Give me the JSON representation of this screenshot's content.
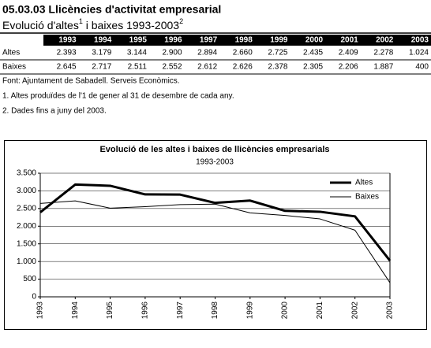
{
  "header": {
    "title": "05.03.03 Llicències d'activitat empresarial",
    "subtitle": [
      "Evolució d'altes",
      "1",
      " i baixes 1993-2003",
      "2"
    ]
  },
  "table": {
    "columns": [
      "1993",
      "1994",
      "1995",
      "1996",
      "1997",
      "1998",
      "1999",
      "2000",
      "2001",
      "2002",
      "2003"
    ],
    "rows": [
      {
        "label": "Altes",
        "values": [
          "2.393",
          "3.179",
          "3.144",
          "2.900",
          "2.894",
          "2.660",
          "2.725",
          "2.435",
          "2.409",
          "2.278",
          "1.024"
        ]
      },
      {
        "label": "Baixes",
        "values": [
          "2.645",
          "2.717",
          "2.511",
          "2.552",
          "2.612",
          "2.626",
          "2.378",
          "2.305",
          "2.206",
          "1.887",
          "400"
        ]
      }
    ]
  },
  "notes": [
    "Font: Ajuntament de Sabadell. Serveis Econòmics.",
    "1. Altes produïdes de l'1 de gener al 31 de desembre de cada any.",
    "2. Dades fins a juny del 2003."
  ],
  "chart_data": {
    "type": "line",
    "title": "Evolució de les altes i baixes de llicències empresarials",
    "subtitle": "1993-2003",
    "categories": [
      "1993",
      "1994",
      "1995",
      "1996",
      "1997",
      "1998",
      "1999",
      "2000",
      "2001",
      "2002",
      "2003"
    ],
    "series": [
      {
        "name": "Altes",
        "color": "#000000",
        "values": [
          2393,
          3179,
          3144,
          2900,
          2894,
          2660,
          2725,
          2435,
          2409,
          2278,
          1024
        ]
      },
      {
        "name": "Baixes",
        "color": "#000000",
        "values": [
          2645,
          2717,
          2511,
          2552,
          2612,
          2626,
          2378,
          2305,
          2206,
          1887,
          400
        ]
      }
    ],
    "ylim": [
      0,
      3500
    ],
    "yticks": [
      {
        "value": 0,
        "label": "0"
      },
      {
        "value": 500,
        "label": "500"
      },
      {
        "value": 1000,
        "label": "1.000"
      },
      {
        "value": 1500,
        "label": "1.500"
      },
      {
        "value": 2000,
        "label": "2.000"
      },
      {
        "value": 2500,
        "label": "2.500"
      },
      {
        "value": 3000,
        "label": "3.000"
      },
      {
        "value": 3500,
        "label": "3.500"
      }
    ],
    "grid": true,
    "legend": "upper right"
  }
}
